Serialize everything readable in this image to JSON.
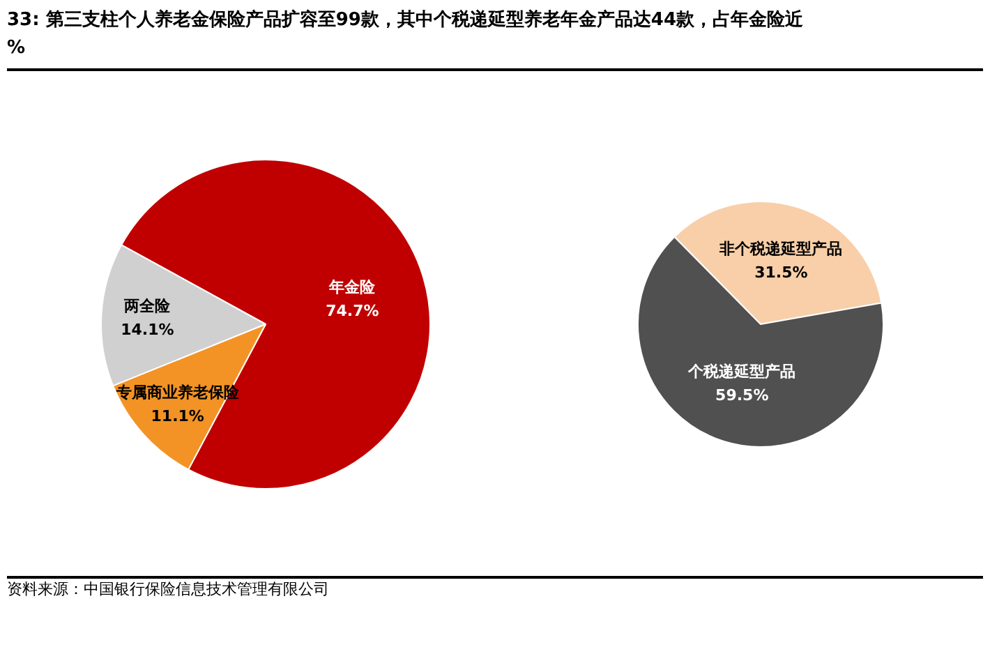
{
  "chart_data": [
    {
      "type": "pie",
      "title": "33: 第三支柱个人养老金保险产品扩容至99款，其中个税递延型养老年金产品达44款，占年金险近\n%",
      "categories": [
        "年金险",
        "两全险",
        "专属商业养老保险"
      ],
      "values": [
        74.7,
        14.1,
        11.1
      ],
      "colors": [
        "#c00000",
        "#d0d0d0",
        "#f39325"
      ],
      "value_labels": [
        "74.7%",
        "14.1%",
        "11.1%"
      ],
      "annotations": [
        "资料来源：中国银行保险信息技术管理有限公司"
      ]
    },
    {
      "type": "pie",
      "categories": [
        "非个税递延型产品",
        "个税递延型产品"
      ],
      "values": [
        31.5,
        59.5
      ],
      "colors": [
        "#f8cfa8",
        "#505050"
      ],
      "value_labels": [
        "31.5%",
        "59.5%"
      ]
    }
  ]
}
